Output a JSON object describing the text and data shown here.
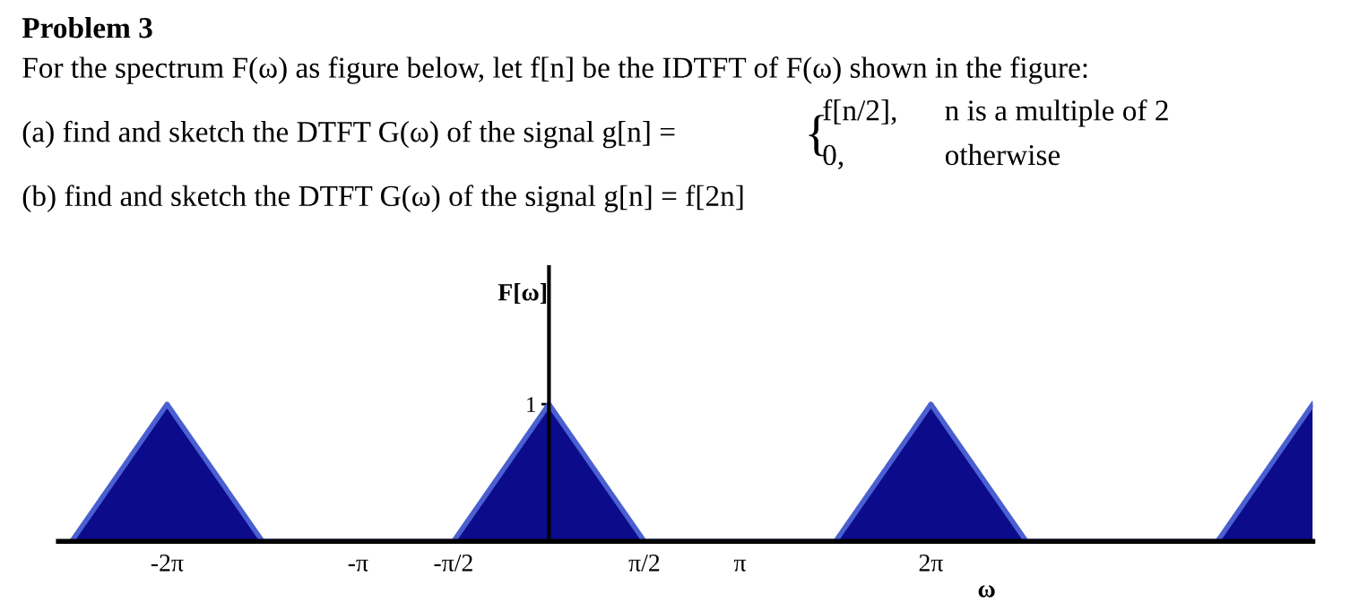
{
  "chart_data": {
    "type": "area",
    "title": "Problem 3",
    "annotations": [
      "For the spectrum F(ω) as figure below, let f[n] be the IDTFT of F(ω) shown in the figure:",
      "(a) find and sketch the DTFT G(ω) of the signal g[n] =",
      "{",
      "f[n/2],",
      "n is a multiple of 2",
      "0,",
      "otherwise",
      "(b) find and sketch the DTFT G(ω) of the signal g[n] = f[2n]"
    ],
    "xlabel": "ω",
    "ylabel": "F[ω]",
    "x": [
      -7.854,
      -6.283,
      -4.712,
      -1.571,
      0,
      1.571,
      4.712,
      6.283,
      7.854,
      10.996,
      12.566
    ],
    "series": [
      {
        "color": "#0b0b8c",
        "values": [
          0,
          1,
          0,
          0,
          1,
          0,
          0,
          1,
          0,
          0,
          1
        ]
      }
    ],
    "xlim": [
      -8.07,
      12.566
    ],
    "ylim": [
      0,
      2
    ],
    "xticks": [
      {
        "value": -6.283,
        "label": "-2π"
      },
      {
        "value": -3.142,
        "label": "-π"
      },
      {
        "value": -1.571,
        "label": "-π/2"
      },
      {
        "value": 1.571,
        "label": "π/2"
      },
      {
        "value": 3.142,
        "label": "π"
      },
      {
        "value": 6.283,
        "label": "2π"
      }
    ],
    "yticks": [
      1
    ],
    "grid": false,
    "legend": false
  }
}
